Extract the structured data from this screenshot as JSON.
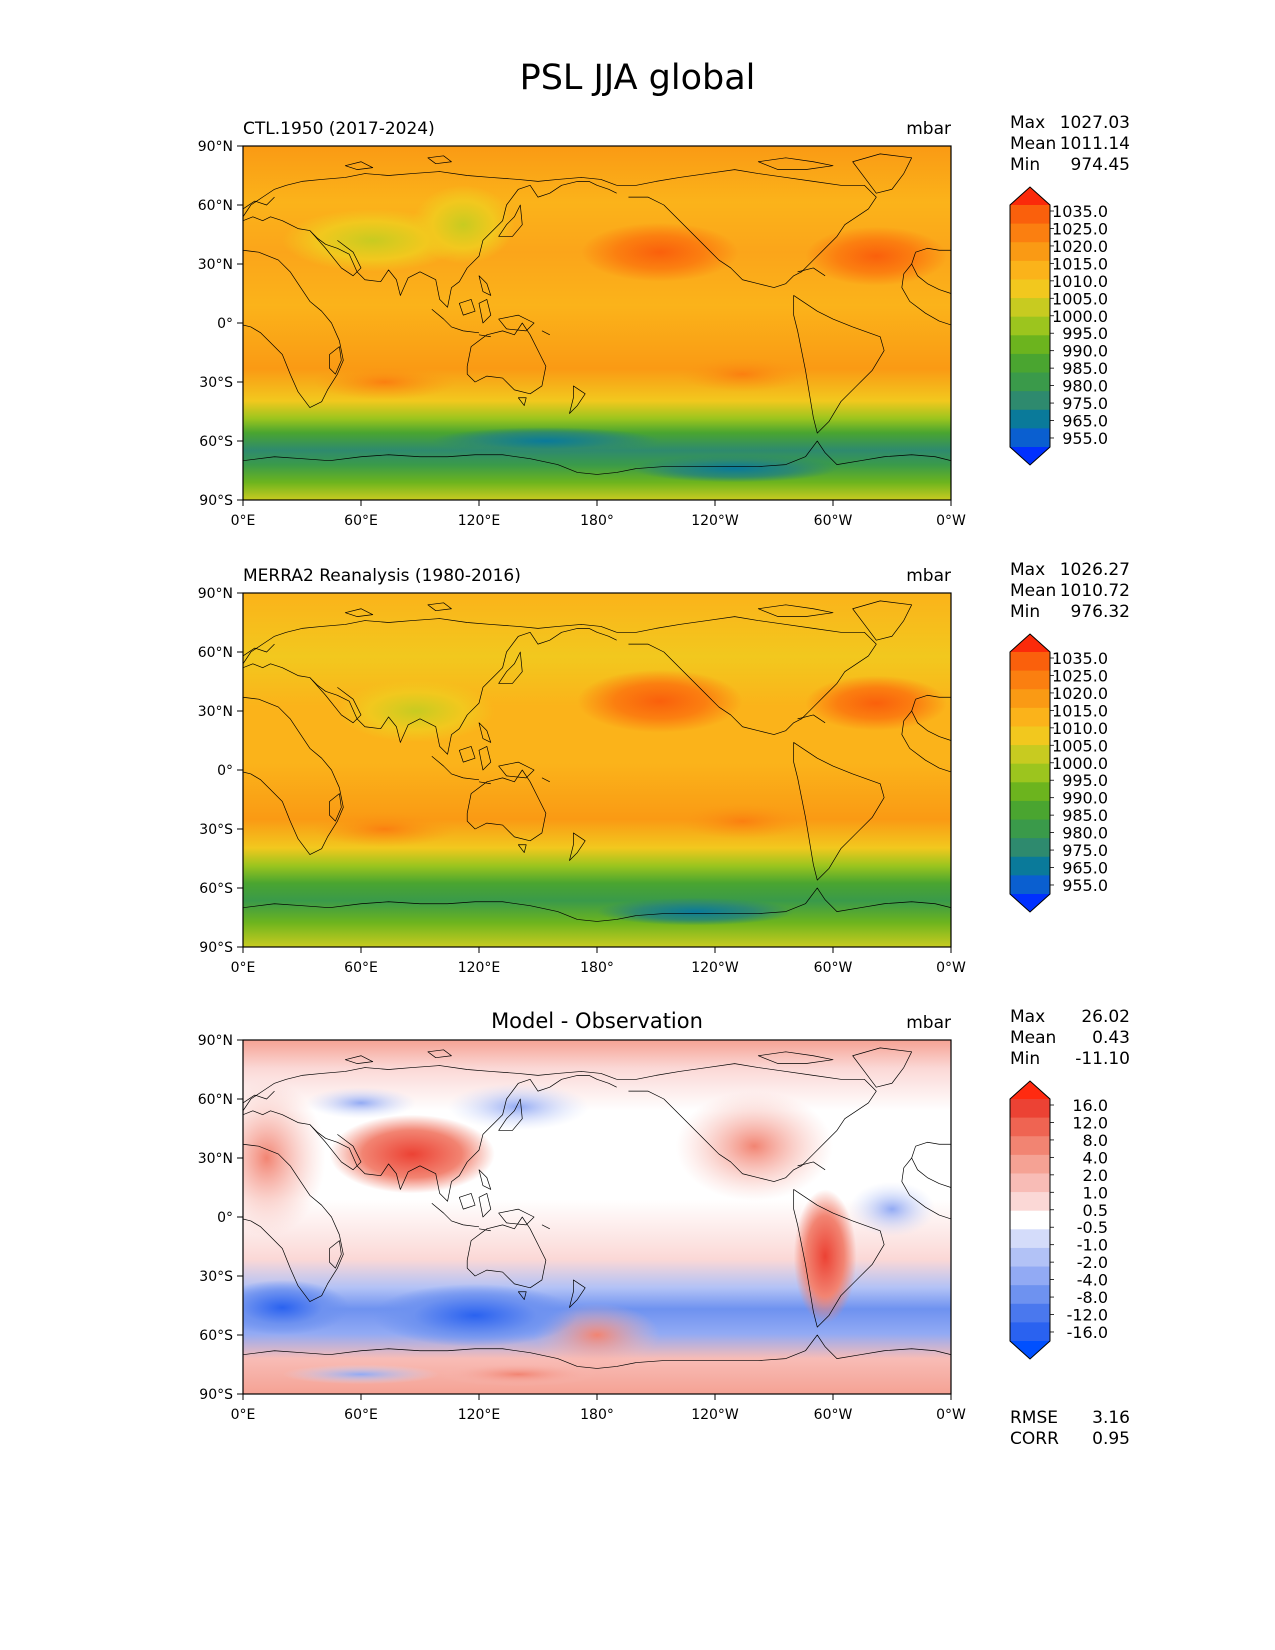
{
  "figure": {
    "title": "PSL JJA global"
  },
  "lat_ticks": [
    "90°N",
    "60°N",
    "30°N",
    "0°",
    "30°S",
    "60°S",
    "90°S"
  ],
  "lon_ticks": [
    "0°E",
    "60°E",
    "120°E",
    "180°",
    "120°W",
    "60°W",
    "0°W"
  ],
  "colors": {
    "psl_levels": [
      "#0030ff",
      "#0a5fd0",
      "#0a7a9a",
      "#2e8a6e",
      "#3a9a4a",
      "#4aa530",
      "#6cb41e",
      "#9cc51e",
      "#c8cb20",
      "#f2c81e",
      "#fbb31a",
      "#fa9a14",
      "#fb7f10",
      "#fa600c",
      "#fb2a0a"
    ],
    "diff_levels": [
      "#0050ff",
      "#2a62f0",
      "#4a78ee",
      "#6e92f0",
      "#92aaf4",
      "#b2c2f6",
      "#d4dcfa",
      "#ffffff",
      "#fbd8d6",
      "#f8bcb6",
      "#f5a294",
      "#f28472",
      "#ef6452",
      "#ec4234",
      "#ff2a10"
    ],
    "coastline": "#000000"
  },
  "panels": [
    {
      "id": "ctl",
      "left_title": "CTL.1950 (2017-2024)",
      "center_title": "",
      "units": "mbar",
      "stats": [
        {
          "label": "Max",
          "value": "1027.03"
        },
        {
          "label": "Mean",
          "value": "1011.14"
        },
        {
          "label": "Min",
          "value": "974.45"
        }
      ],
      "colorbar_labels": [
        "1035.0",
        "1025.0",
        "1020.0",
        "1015.0",
        "1010.0",
        "1005.0",
        "1000.0",
        "995.0",
        "990.0",
        "985.0",
        "980.0",
        "975.0",
        "965.0",
        "955.0"
      ],
      "colorbar_palette": "psl",
      "extra_stats": []
    },
    {
      "id": "obs",
      "left_title": "MERRA2 Reanalysis (1980-2016)",
      "center_title": "",
      "units": "mbar",
      "stats": [
        {
          "label": "Max",
          "value": "1026.27"
        },
        {
          "label": "Mean",
          "value": "1010.72"
        },
        {
          "label": "Min",
          "value": "976.32"
        }
      ],
      "colorbar_labels": [
        "1035.0",
        "1025.0",
        "1020.0",
        "1015.0",
        "1010.0",
        "1005.0",
        "1000.0",
        "995.0",
        "990.0",
        "985.0",
        "980.0",
        "975.0",
        "965.0",
        "955.0"
      ],
      "colorbar_palette": "psl",
      "extra_stats": []
    },
    {
      "id": "diff",
      "left_title": "",
      "center_title": "Model - Observation",
      "units": "mbar",
      "stats": [
        {
          "label": "Max",
          "value": "26.02"
        },
        {
          "label": "Mean",
          "value": "0.43"
        },
        {
          "label": "Min",
          "value": "-11.10"
        }
      ],
      "colorbar_labels": [
        "16.0",
        "12.0",
        "8.0",
        "4.0",
        "2.0",
        "1.0",
        "0.5",
        "-0.5",
        "-1.0",
        "-2.0",
        "-4.0",
        "-8.0",
        "-12.0",
        "-16.0"
      ],
      "colorbar_palette": "diff",
      "extra_stats": [
        {
          "label": "RMSE",
          "value": "3.16"
        },
        {
          "label": "CORR",
          "value": "0.95"
        }
      ]
    }
  ]
}
